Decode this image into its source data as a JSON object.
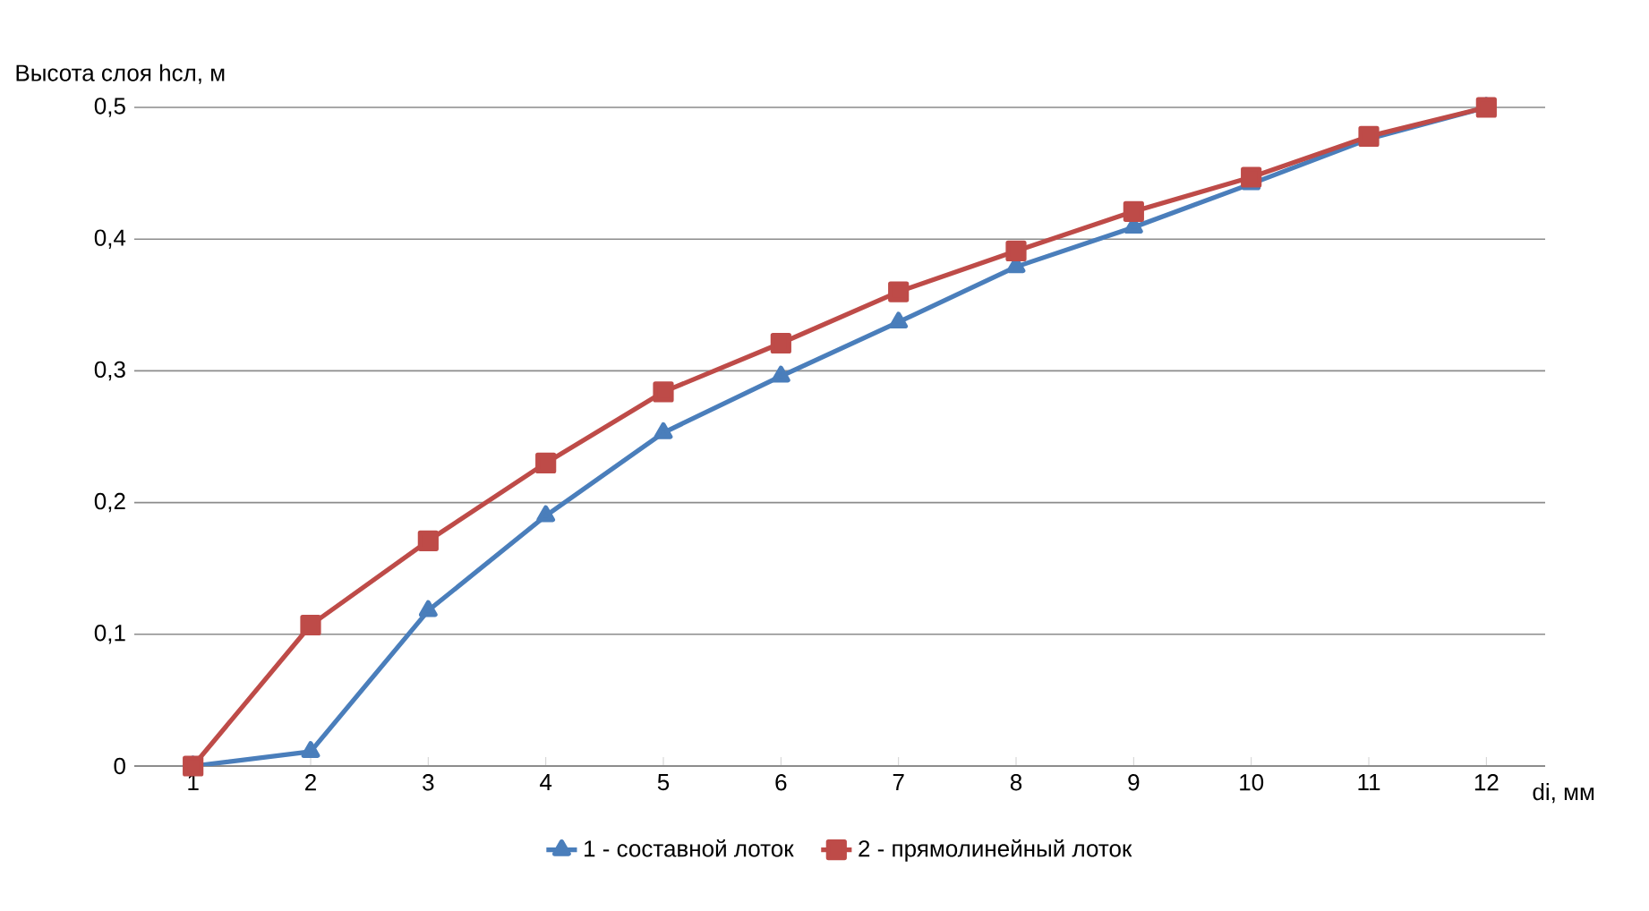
{
  "chart_data": {
    "type": "line",
    "ylabel": "Высота слоя hсл, м",
    "xlabel": "di, мм",
    "categories": [
      "1",
      "2",
      "3",
      "4",
      "5",
      "6",
      "7",
      "8",
      "9",
      "10",
      "11",
      "12"
    ],
    "ylim": [
      0,
      0.5
    ],
    "yticks": [
      {
        "value": 0,
        "label": "0"
      },
      {
        "value": 0.1,
        "label": "0,1"
      },
      {
        "value": 0.2,
        "label": "0,2"
      },
      {
        "value": 0.3,
        "label": "0,3"
      },
      {
        "value": 0.4,
        "label": "0,4"
      },
      {
        "value": 0.5,
        "label": "0,5"
      }
    ],
    "grid": "y",
    "legend": "bottom",
    "line_style": "solid",
    "series": [
      {
        "name": "1 - составной лоток",
        "color": "#4a7ebb",
        "marker": "triangle",
        "values": [
          0,
          0.011,
          0.118,
          0.19,
          0.253,
          0.296,
          0.337,
          0.379,
          0.409,
          0.442,
          0.476,
          0.5
        ]
      },
      {
        "name": "2 - прямолинейный лоток",
        "color": "#be4b48",
        "marker": "square",
        "values": [
          0,
          0.107,
          0.171,
          0.23,
          0.284,
          0.321,
          0.36,
          0.391,
          0.421,
          0.447,
          0.478,
          0.5
        ]
      }
    ]
  }
}
